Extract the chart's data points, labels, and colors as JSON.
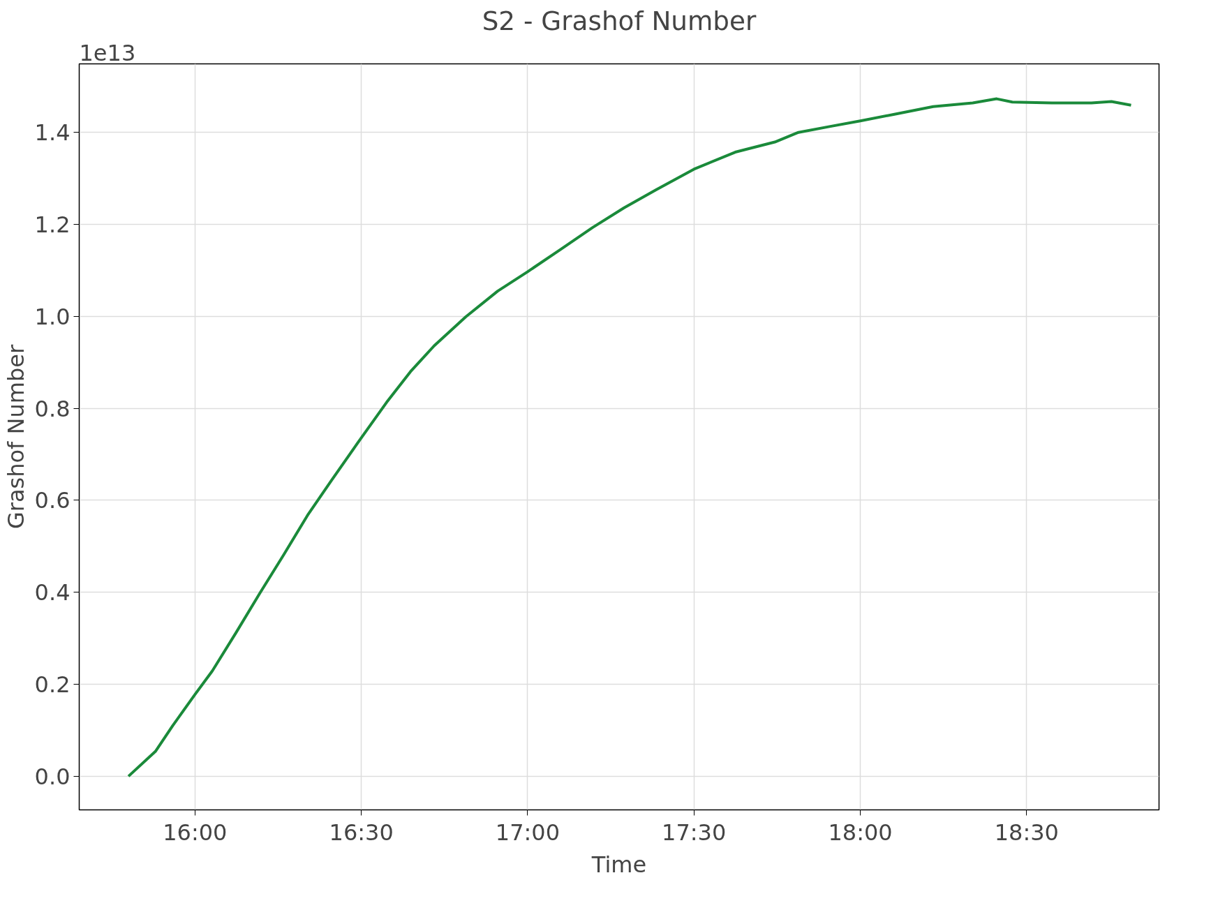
{
  "chart_data": {
    "type": "line",
    "title": "S2 - Grashof Number",
    "xlabel": "Time",
    "ylabel": "Grashof Number",
    "annotations": [
      "1e13"
    ],
    "xlim": [
      15.652,
      18.898
    ],
    "ylim": [
      -0.073,
      1.549
    ],
    "xticks": [
      {
        "value": 16.0,
        "label": "16:00"
      },
      {
        "value": 16.5,
        "label": "16:30"
      },
      {
        "value": 17.0,
        "label": "17:00"
      },
      {
        "value": 17.5,
        "label": "17:30"
      },
      {
        "value": 18.0,
        "label": "18:00"
      },
      {
        "value": 18.5,
        "label": "18:30"
      }
    ],
    "yticks": [
      {
        "value": 0,
        "label": "0.0"
      },
      {
        "value": 0.2,
        "label": "0.2"
      },
      {
        "value": 0.4,
        "label": "0.4"
      },
      {
        "value": 0.6,
        "label": "0.6"
      },
      {
        "value": 0.8,
        "label": "0.8"
      },
      {
        "value": 1.0,
        "label": "1.0"
      },
      {
        "value": 1.2,
        "label": "1.2"
      },
      {
        "value": 1.4,
        "label": "1.4"
      }
    ],
    "grid": true,
    "x": [
      15.8,
      15.881,
      15.933,
      16.0,
      16.052,
      16.124,
      16.195,
      16.267,
      16.338,
      16.41,
      16.5,
      16.576,
      16.648,
      16.719,
      16.814,
      16.91,
      17.0,
      17.1,
      17.195,
      17.29,
      17.386,
      17.5,
      17.624,
      17.743,
      17.814,
      17.91,
      18.0,
      18.1,
      18.219,
      18.338,
      18.41,
      18.457,
      18.576,
      18.695,
      18.755,
      18.814
    ],
    "series": [
      {
        "color": "#1a8a3a",
        "values": [
          0,
          0.054,
          0.11,
          0.178,
          0.229,
          0.313,
          0.398,
          0.482,
          0.567,
          0.643,
          0.736,
          0.813,
          0.88,
          0.936,
          0.999,
          1.055,
          1.097,
          1.146,
          1.193,
          1.236,
          1.275,
          1.32,
          1.357,
          1.379,
          1.4,
          1.413,
          1.425,
          1.439,
          1.456,
          1.464,
          1.473,
          1.466,
          1.464,
          1.464,
          1.467,
          1.459
        ]
      }
    ]
  }
}
